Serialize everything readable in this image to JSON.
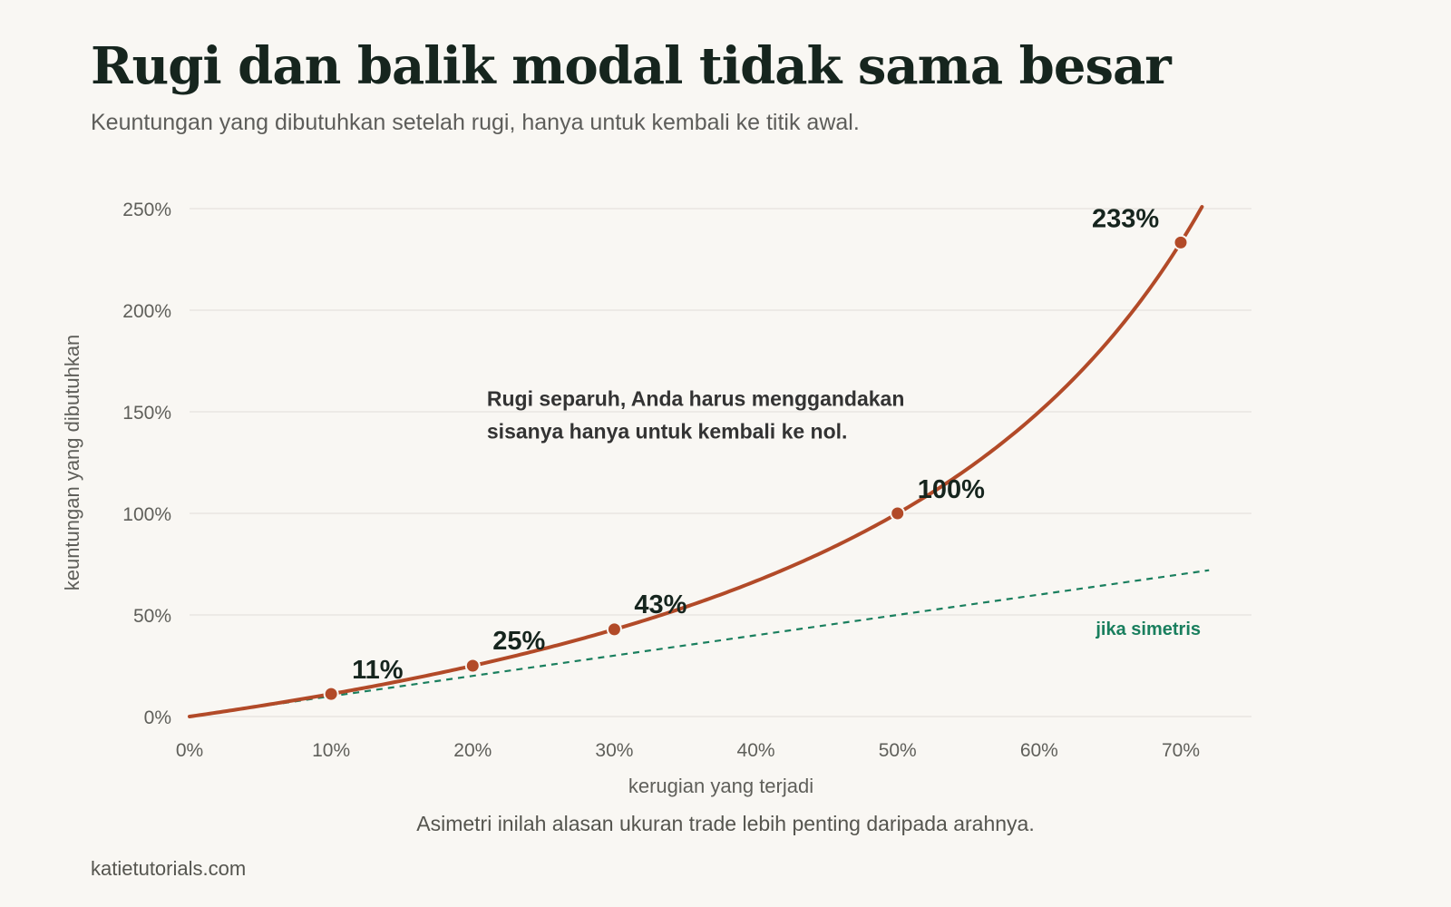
{
  "title": "Rugi dan balik modal tidak sama besar",
  "subtitle": "Keuntungan yang dibutuhkan setelah rugi, hanya untuk kembali ke titik awal.",
  "caption": "Asimetri inilah alasan ukuran trade lebih penting daripada arahnya.",
  "source": "katietutorials.com",
  "annotation": {
    "lines": [
      "Rugi separuh, Anda harus menggandakan",
      "sisanya hanya untuk kembali ke nol."
    ],
    "anchor_x": 21,
    "anchor_y": 153
  },
  "colors": {
    "curve": "#b24a28",
    "symmetric": "#1a7f5e",
    "grid": "#e6e3dd",
    "axis_text": "#5f5f5a",
    "label_text": "#16251e"
  },
  "chart_data": {
    "type": "line",
    "xlabel": "kerugian yang terjadi",
    "ylabel": "keuntungan yang dibutuhkan",
    "xlim": [
      0,
      72
    ],
    "ylim": [
      0,
      250
    ],
    "x_ticks": [
      0,
      10,
      20,
      30,
      40,
      50,
      60,
      70
    ],
    "y_ticks": [
      0,
      50,
      100,
      150,
      200,
      250
    ],
    "tick_suffix": "%",
    "grid": true,
    "series": [
      {
        "key": "required",
        "formula": "100*x/(100-x)",
        "x": [
          0,
          5,
          10,
          15,
          20,
          25,
          30,
          35,
          40,
          45,
          50,
          55,
          60,
          65,
          70,
          71.5
        ],
        "y": [
          0,
          5.3,
          11.1,
          17.6,
          25,
          33.3,
          42.9,
          53.8,
          66.7,
          81.8,
          100,
          122.2,
          150,
          185.7,
          233.3,
          250.9
        ]
      },
      {
        "key": "symmetric",
        "name": "jika simetris",
        "x": [
          0,
          72
        ],
        "y": [
          0,
          72
        ]
      }
    ],
    "highlight_points": [
      {
        "x": 10,
        "y": 11.1,
        "label": "11%"
      },
      {
        "x": 20,
        "y": 25,
        "label": "25%"
      },
      {
        "x": 30,
        "y": 42.9,
        "label": "43%"
      },
      {
        "x": 50,
        "y": 100,
        "label": "100%"
      },
      {
        "x": 70,
        "y": 233.3,
        "label": "233%"
      }
    ]
  }
}
